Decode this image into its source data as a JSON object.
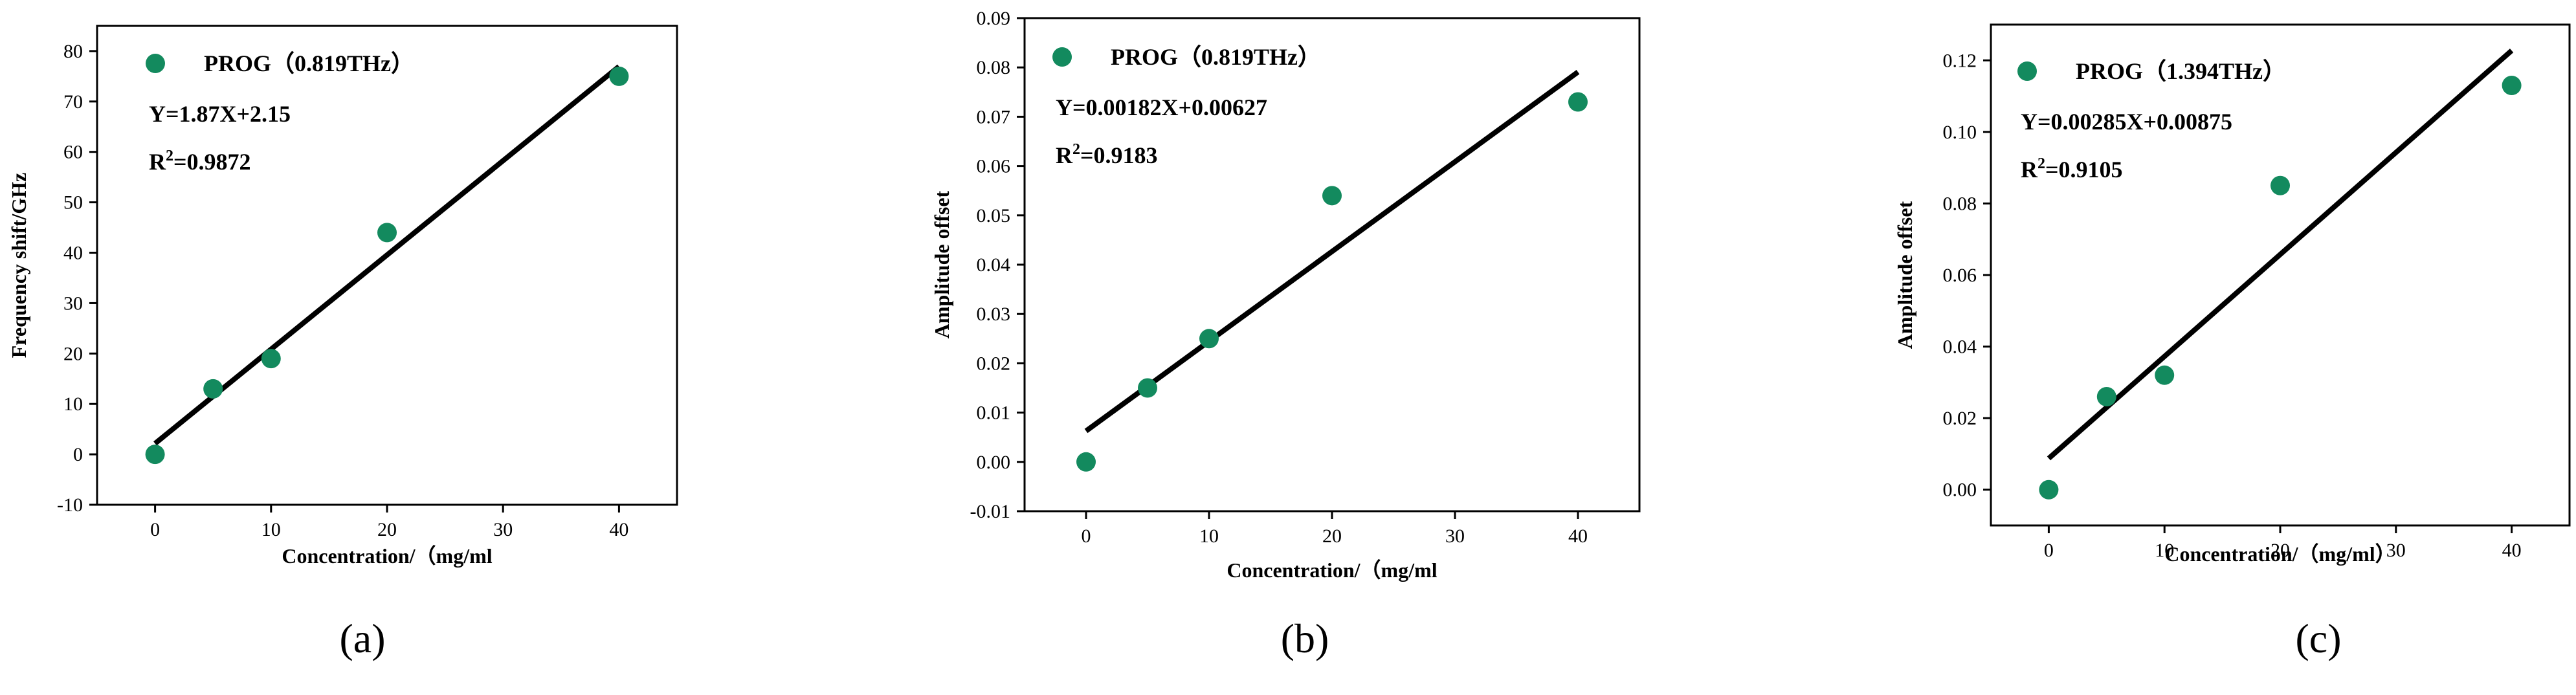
{
  "colors": {
    "marker": "#138a5e",
    "fit_line": "#000000",
    "axis": "#000000"
  },
  "chart_data": [
    {
      "type": "scatter",
      "panel_label": "(a)",
      "xlabel": "Concentration/（mg/ml",
      "ylabel": "Frequency shift/GHz",
      "legend": "PROG（0.819THz）",
      "equation": "Y=1.87X+2.15",
      "r2_prefix": "R",
      "r2_sup": "2",
      "r2_value": "=0.9872",
      "xlim": [
        -5,
        45
      ],
      "ylim": [
        -10,
        85
      ],
      "xticks": [
        0,
        10,
        20,
        30,
        40
      ],
      "xtick_labels": [
        "0",
        "10",
        "20",
        "30",
        "40"
      ],
      "yticks": [
        -10,
        0,
        10,
        20,
        30,
        40,
        50,
        60,
        70,
        80
      ],
      "ytick_labels": [
        "-10",
        "0",
        "10",
        "20",
        "30",
        "40",
        "50",
        "60",
        "70",
        "80"
      ],
      "x": [
        0,
        5,
        10,
        20,
        40
      ],
      "y": [
        0,
        13,
        19,
        44,
        75
      ],
      "fit": {
        "slope": 1.87,
        "intercept": 2.15,
        "x_range": [
          0,
          40
        ]
      }
    },
    {
      "type": "scatter",
      "panel_label": "(b)",
      "xlabel": "Concentration/（mg/ml",
      "ylabel": "Amplitude offset",
      "legend": "PROG（0.819THz）",
      "equation": "Y=0.00182X+0.00627",
      "r2_prefix": "R",
      "r2_sup": "2",
      "r2_value": "=0.9183",
      "xlim": [
        -5,
        45
      ],
      "ylim": [
        -0.01,
        0.09
      ],
      "xticks": [
        0,
        10,
        20,
        30,
        40
      ],
      "xtick_labels": [
        "0",
        "10",
        "20",
        "30",
        "40"
      ],
      "yticks": [
        -0.01,
        0,
        0.01,
        0.02,
        0.03,
        0.04,
        0.05,
        0.06,
        0.07,
        0.08,
        0.09
      ],
      "ytick_labels": [
        "-0.01",
        "0.00",
        "0.01",
        "0.02",
        "0.03",
        "0.04",
        "0.05",
        "0.06",
        "0.07",
        "0.08",
        "0.09"
      ],
      "x": [
        0,
        5,
        10,
        20,
        40
      ],
      "y": [
        0,
        0.015,
        0.025,
        0.054,
        0.073
      ],
      "fit": {
        "slope": 0.00182,
        "intercept": 0.00627,
        "x_range": [
          0,
          40
        ]
      }
    },
    {
      "type": "scatter",
      "panel_label": "(c)",
      "xlabel": "Concentration/（mg/ml）",
      "ylabel": "Amplitude offset",
      "legend": "PROG（1.394THz）",
      "equation": "Y=0.00285X+0.00875",
      "r2_prefix": "R",
      "r2_sup": "2",
      "r2_value": "=0.9105",
      "xlim": [
        -5,
        45
      ],
      "ylim": [
        -0.01,
        0.13
      ],
      "xticks": [
        0,
        10,
        20,
        30,
        40
      ],
      "xtick_labels": [
        "0",
        "10",
        "20",
        "30",
        "40"
      ],
      "yticks": [
        0,
        0.02,
        0.04,
        0.06,
        0.08,
        0.1,
        0.12
      ],
      "ytick_labels": [
        "0.00",
        "0.02",
        "0.04",
        "0.06",
        "0.08",
        "0.10",
        "0.12"
      ],
      "x": [
        0,
        5,
        10,
        20,
        40
      ],
      "y": [
        0,
        0.026,
        0.032,
        0.085,
        0.113
      ],
      "fit": {
        "slope": 0.00285,
        "intercept": 0.00875,
        "x_range": [
          0,
          40
        ]
      }
    }
  ]
}
